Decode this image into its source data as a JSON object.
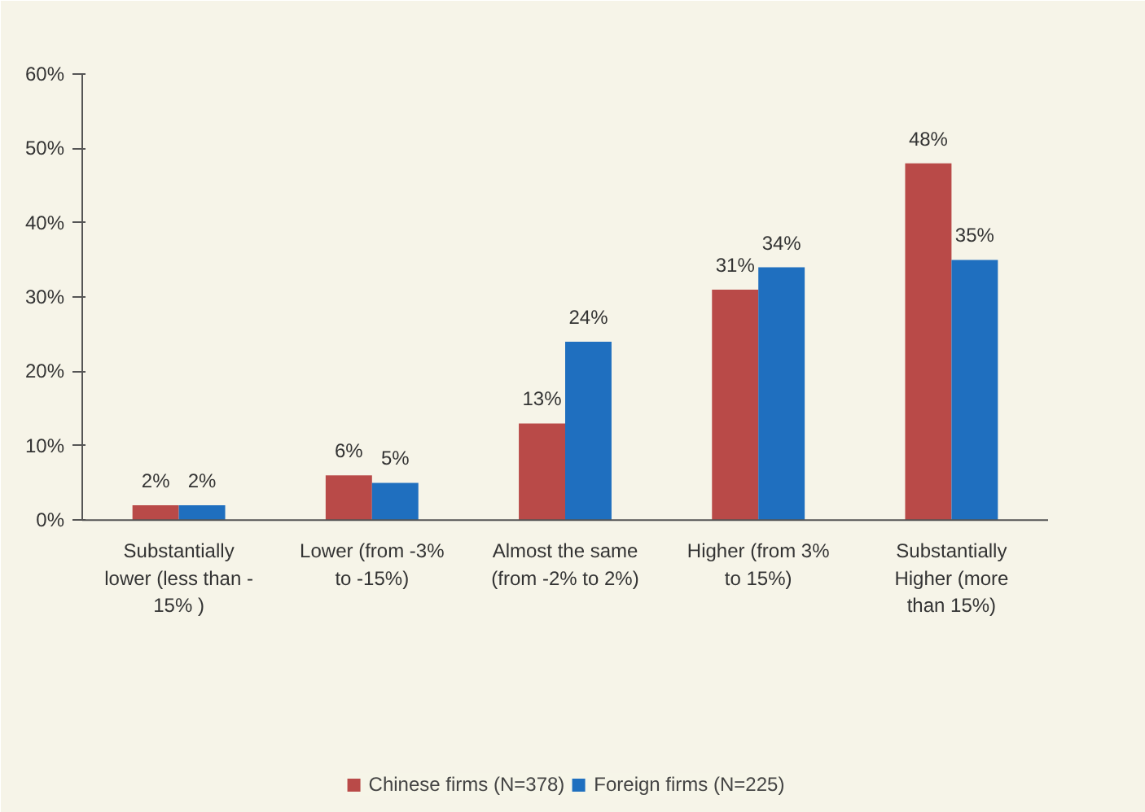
{
  "chart_data": {
    "type": "bar",
    "categories": [
      "Substantially\nlower (less than -\n15% )",
      "Lower (from -3%\nto -15%)",
      "Almost the same\n(from -2% to 2%)",
      "Higher (from 3%\nto 15%)",
      "Substantially\nHigher (more\nthan 15%)"
    ],
    "series": [
      {
        "name": "Chinese firms (N=378)",
        "color": "#b94a48",
        "values": [
          2,
          6,
          13,
          31,
          48
        ],
        "value_labels": [
          "2%",
          "6%",
          "13%",
          "31%",
          "48%"
        ]
      },
      {
        "name": "Foreign firms (N=225)",
        "color": "#1f6fbf",
        "values": [
          2,
          5,
          24,
          34,
          35
        ],
        "value_labels": [
          "2%",
          "5%",
          "24%",
          "34%",
          "35%"
        ]
      }
    ],
    "ylim": [
      0,
      60
    ],
    "yticks": [
      {
        "value": 0,
        "label": "0%"
      },
      {
        "value": 10,
        "label": "10%"
      },
      {
        "value": 20,
        "label": "20%"
      },
      {
        "value": 30,
        "label": "30%"
      },
      {
        "value": 40,
        "label": "40%"
      },
      {
        "value": 50,
        "label": "50%"
      },
      {
        "value": 60,
        "label": "60%"
      }
    ],
    "legend": "bottom"
  }
}
